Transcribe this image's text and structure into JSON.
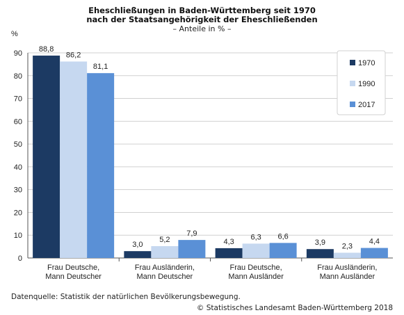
{
  "chart_data": {
    "type": "bar",
    "title_lines": [
      "Eheschließungen in Baden-Württemberg seit 1970",
      "nach der Staatsangehörigkeit der Eheschließenden"
    ],
    "subtitle": "– Anteile in % –",
    "ylabel": "%",
    "xlabel": "",
    "ylim": [
      0,
      90
    ],
    "yticks": [
      0,
      10,
      20,
      30,
      40,
      50,
      60,
      70,
      80,
      90
    ],
    "categories": [
      [
        "Frau Deutsche,",
        "Mann Deutscher"
      ],
      [
        "Frau Ausländerin,",
        "Mann Deutscher"
      ],
      [
        "Frau Deutsche,",
        "Mann Ausländer"
      ],
      [
        "Frau Ausländerin,",
        "Mann Ausländer"
      ]
    ],
    "series": [
      {
        "name": "1970",
        "color": "#1c3a63",
        "values": [
          88.8,
          3.0,
          4.3,
          3.9
        ],
        "labels": [
          "88,8",
          "3,0",
          "4,3",
          "3,9"
        ]
      },
      {
        "name": "1990",
        "color": "#c6d8f0",
        "values": [
          86.2,
          5.2,
          6.3,
          2.3
        ],
        "labels": [
          "86,2",
          "5,2",
          "6,3",
          "2,3"
        ]
      },
      {
        "name": "2017",
        "color": "#5a90d6",
        "values": [
          81.1,
          7.9,
          6.6,
          4.4
        ],
        "labels": [
          "81,1",
          "7,9",
          "6,6",
          "4,4"
        ]
      }
    ],
    "legend_position": "top-right",
    "grid": "horizontal"
  },
  "footer": {
    "source": "Datenquelle: Statistik der natürlichen Bevölkerungsbewegung.",
    "copyright": "© Statistisches Landesamt Baden-Württemberg 2018"
  }
}
